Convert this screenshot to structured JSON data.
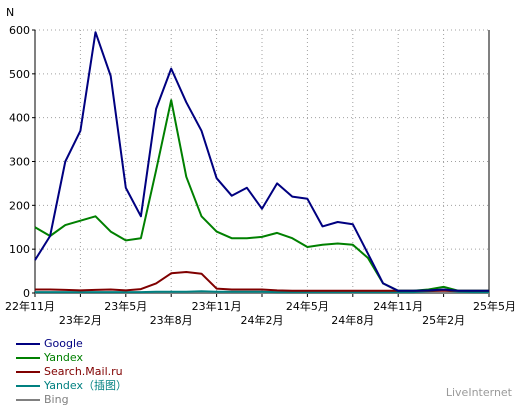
{
  "chart_data": {
    "type": "line",
    "ylabel": "N",
    "xlabel": "",
    "ylim": [
      0,
      600
    ],
    "yticks": [
      0,
      100,
      200,
      300,
      400,
      500,
      600
    ],
    "xlim": [
      0,
      30
    ],
    "grid": true,
    "legend_position": "bottom-left",
    "xticks": [
      {
        "label": "22年11月",
        "row": 0
      },
      {
        "label": "23年2月",
        "row": 1
      },
      {
        "label": "23年5月",
        "row": 0
      },
      {
        "label": "23年8月",
        "row": 1
      },
      {
        "label": "23年11月",
        "row": 0
      },
      {
        "label": "24年2月",
        "row": 1
      },
      {
        "label": "24年5月",
        "row": 0
      },
      {
        "label": "24年8月",
        "row": 1
      },
      {
        "label": "24年11月",
        "row": 0
      },
      {
        "label": "25年2月",
        "row": 1
      },
      {
        "label": "25年5月",
        "row": 0
      }
    ],
    "series": [
      {
        "name": "Google",
        "color": "#000080",
        "values": [
          75,
          130,
          300,
          370,
          595,
          495,
          240,
          175,
          420,
          512,
          435,
          370,
          262,
          222,
          240,
          192,
          250,
          220,
          215,
          152,
          162,
          157,
          90,
          22,
          5,
          5,
          6,
          8,
          5,
          5,
          5
        ]
      },
      {
        "name": "Yandex",
        "color": "#008000",
        "values": [
          150,
          130,
          155,
          165,
          175,
          140,
          120,
          125,
          280,
          440,
          265,
          175,
          140,
          125,
          125,
          128,
          137,
          125,
          105,
          110,
          113,
          110,
          80,
          22,
          5,
          5,
          8,
          14,
          5,
          5,
          5
        ]
      },
      {
        "name": "Search.Mail.ru",
        "color": "#800000",
        "values": [
          8,
          8,
          7,
          6,
          7,
          8,
          6,
          9,
          22,
          45,
          48,
          44,
          10,
          8,
          8,
          8,
          6,
          5,
          5,
          5,
          5,
          5,
          5,
          5,
          5,
          5,
          5,
          5,
          5,
          5,
          5
        ]
      },
      {
        "name": "Yandex（插图）",
        "color": "#008080",
        "values": [
          2,
          2,
          2,
          2,
          2,
          2,
          2,
          2,
          3,
          3,
          3,
          4,
          3,
          3,
          3,
          3,
          2,
          2,
          2,
          2,
          2,
          2,
          2,
          2,
          2,
          2,
          4,
          6,
          3,
          2,
          2
        ]
      },
      {
        "name": "Bing",
        "color": "#808080",
        "values": [
          0,
          0,
          0,
          0,
          0,
          0,
          0,
          0,
          0,
          0,
          0,
          0,
          0,
          0,
          0,
          0,
          0,
          0,
          0,
          0,
          0,
          0,
          0,
          0,
          0,
          0,
          0,
          0,
          0,
          0,
          0
        ]
      }
    ]
  },
  "legend": {
    "items": [
      {
        "label": "Google",
        "color": "#000080"
      },
      {
        "label": "Yandex",
        "color": "#008000"
      },
      {
        "label": "Search.Mail.ru",
        "color": "#800000"
      },
      {
        "label": "Yandex（插图）",
        "color": "#008080"
      },
      {
        "label": "Bing",
        "color": "#808080"
      }
    ]
  },
  "credit": "LiveInternet"
}
